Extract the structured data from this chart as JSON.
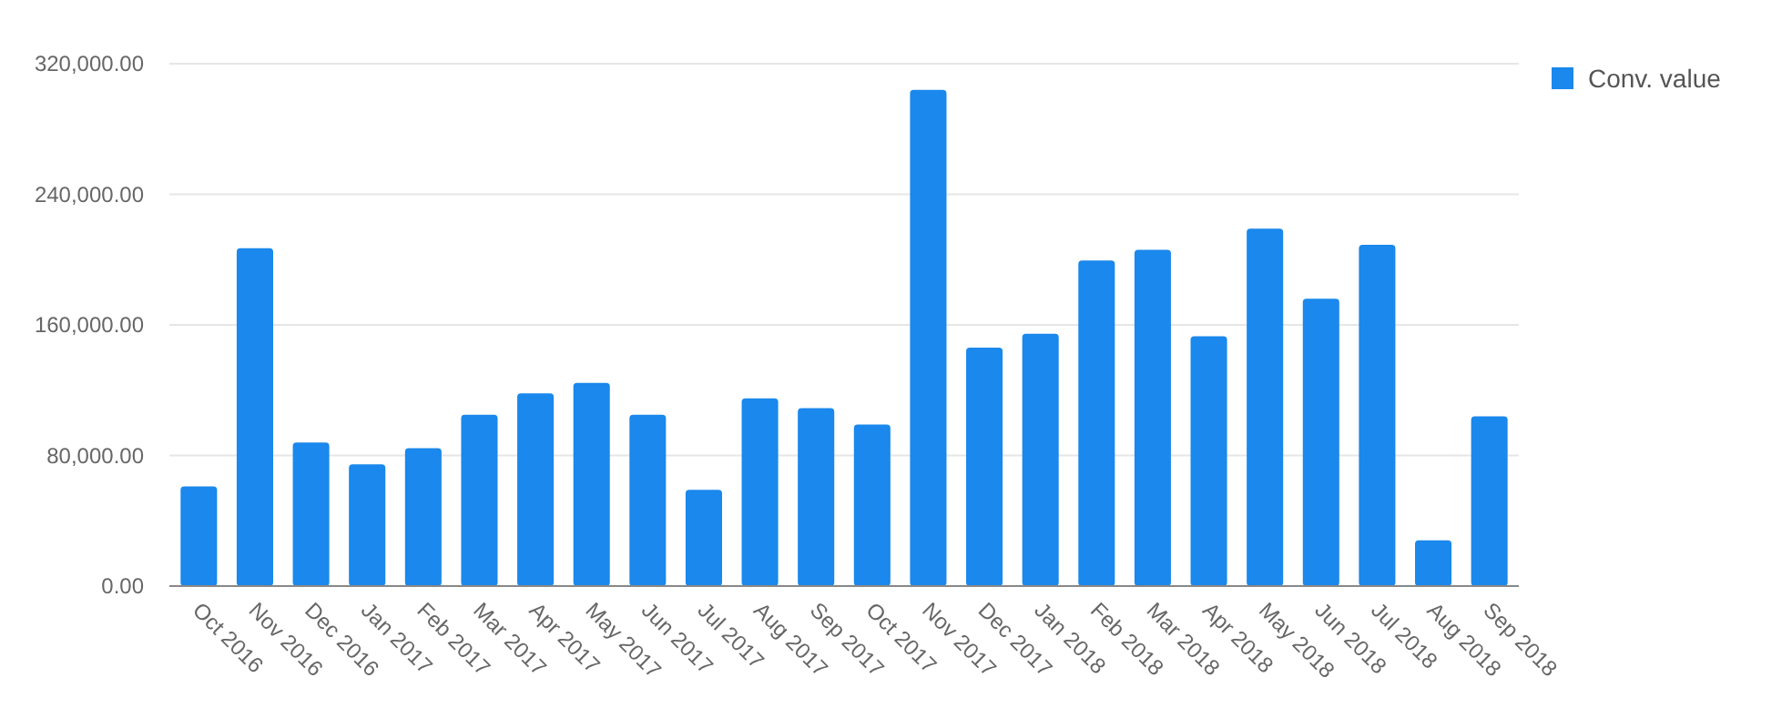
{
  "chart_data": {
    "type": "bar",
    "categories": [
      "Oct 2016",
      "Nov 2016",
      "Dec 2016",
      "Jan 2017",
      "Feb 2017",
      "Mar 2017",
      "Apr 2017",
      "May 2017",
      "Jun 2017",
      "Jul 2017",
      "Aug 2017",
      "Sep 2017",
      "Oct 2017",
      "Nov 2017",
      "Dec 2017",
      "Jan 2018",
      "Feb 2018",
      "Mar 2018",
      "Apr 2018",
      "May 2018",
      "Jun 2018",
      "Jul 2018",
      "Aug 2018",
      "Sep 2018"
    ],
    "series": [
      {
        "name": "Conv. value",
        "color": "#1a88ec",
        "values": [
          61000,
          207000,
          88000,
          74500,
          84500,
          105000,
          118000,
          124500,
          105000,
          59000,
          115000,
          109000,
          99000,
          304000,
          146000,
          154500,
          199500,
          206000,
          153000,
          219000,
          176000,
          209000,
          28000,
          104000
        ]
      }
    ],
    "ylim": [
      0,
      320000
    ],
    "yticks": [
      {
        "value": 0,
        "label": "0.00"
      },
      {
        "value": 80000,
        "label": "80,000.00"
      },
      {
        "value": 160000,
        "label": "160,000.00"
      },
      {
        "value": 240000,
        "label": "240,000.00"
      },
      {
        "value": 320000,
        "label": "320,000.00"
      }
    ],
    "grid": "y",
    "legend": "top right"
  }
}
